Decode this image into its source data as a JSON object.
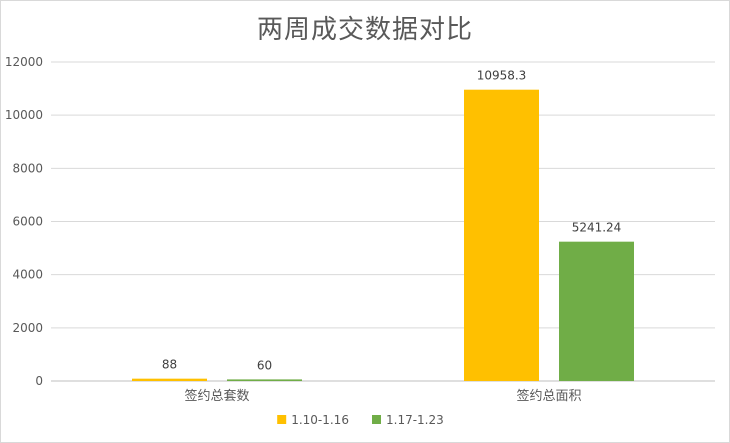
{
  "chart_data": {
    "type": "bar",
    "title": "两周成交数据对比",
    "categories": [
      "签约总套数",
      "签约总面积"
    ],
    "series": [
      {
        "name": "1.10-1.16",
        "values": [
          88,
          10958.3
        ],
        "labels": [
          "88",
          "10958.3"
        ],
        "color": "#FFC000"
      },
      {
        "name": "1.17-1.23",
        "values": [
          60,
          5241.24
        ],
        "labels": [
          "60",
          "5241.24"
        ],
        "color": "#70AD47"
      }
    ],
    "ylim": [
      0,
      12000
    ],
    "yticks": [
      "0",
      "2000",
      "4000",
      "6000",
      "8000",
      "10000",
      "12000"
    ],
    "grid": true,
    "legend": "bottom",
    "xlabel": "",
    "ylabel": ""
  }
}
